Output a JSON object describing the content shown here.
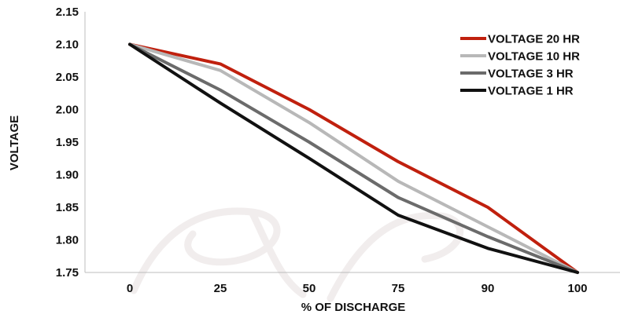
{
  "chart_data": {
    "type": "line",
    "xlabel": "% OF DISCHARGE",
    "ylabel": "VOLTAGE",
    "categories": [
      "0",
      "25",
      "50",
      "75",
      "90",
      "100"
    ],
    "ylim": [
      1.75,
      2.15
    ],
    "yticks": [
      "2.15",
      "2.10",
      "2.05",
      "2.00",
      "1.95",
      "1.90",
      "1.85",
      "1.80",
      "1.75"
    ],
    "grid": false,
    "legend_position": "top-right",
    "series": [
      {
        "name": "VOLTAGE 20 HR",
        "color": "#c0200e",
        "values": [
          2.1,
          2.07,
          2.0,
          1.92,
          1.85,
          1.75
        ]
      },
      {
        "name": "VOLTAGE 10 HR",
        "color": "#b8b8b8",
        "values": [
          2.1,
          2.06,
          1.98,
          1.89,
          1.82,
          1.75
        ]
      },
      {
        "name": "VOLTAGE 3 HR",
        "color": "#6b6b6b",
        "values": [
          2.1,
          2.03,
          1.95,
          1.865,
          1.805,
          1.75
        ]
      },
      {
        "name": "VOLTAGE 1 HR",
        "color": "#111111",
        "values": [
          2.1,
          2.01,
          1.925,
          1.838,
          1.787,
          1.75
        ]
      }
    ]
  }
}
